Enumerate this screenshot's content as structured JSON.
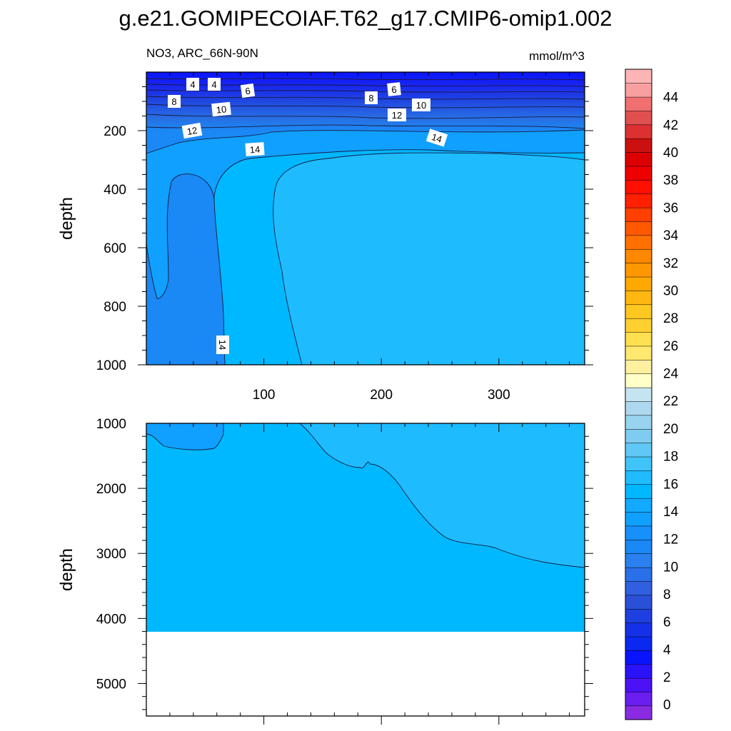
{
  "chart_data": {
    "type": "heatmap",
    "title": "g.e21.GOMIPECOIAF.T62_g17.CMIP6-omip1.002",
    "left_subtitle": "NO3, ARC_66N-90N",
    "right_subtitle": "mmol/m^3",
    "colorbar": {
      "levels": [
        0,
        2,
        4,
        6,
        8,
        10,
        12,
        14,
        16,
        18,
        20,
        22,
        24,
        26,
        28,
        30,
        32,
        34,
        36,
        38,
        40,
        42,
        44
      ],
      "tick_labels": [
        "0",
        "2",
        "4",
        "6",
        "8",
        "10",
        "12",
        "14",
        "16",
        "18",
        "20",
        "22",
        "24",
        "26",
        "28",
        "30",
        "32",
        "34",
        "36",
        "38",
        "40",
        "42",
        "44"
      ],
      "bin_colors": [
        "#8a2be2",
        "#6a1ef0",
        "#4b12f5",
        "#2a12fa",
        "#0a14fc",
        "#0a28f0",
        "#1530e6",
        "#1e40e0",
        "#2a50d8",
        "#3060e0",
        "#2a70e8",
        "#2a80ee",
        "#1a88f5",
        "#1890fc",
        "#10a0ff",
        "#12aaff",
        "#00b8ff",
        "#20bcff",
        "#40c4f8",
        "#60c8f4",
        "#80ccf0",
        "#98d4f0",
        "#aed8f0",
        "#c4e4f0",
        "#ffffc8",
        "#fff0a0",
        "#ffe870",
        "#ffe050",
        "#ffd030",
        "#ffc820",
        "#ffb810",
        "#ffa800",
        "#ff9800",
        "#ff8800",
        "#ff7000",
        "#ff5800",
        "#ff4000",
        "#ff2000",
        "#ff1000",
        "#ee0000",
        "#dd0000",
        "#cc1010",
        "#dd3030",
        "#e05050",
        "#f07070",
        "#f8a0a0",
        "#fcb4b4"
      ]
    },
    "top_panel": {
      "x_ticks": [
        100,
        200,
        300
      ],
      "xlim": [
        0,
        373
      ],
      "y_ticks": [
        200,
        400,
        600,
        800,
        1000
      ],
      "ylim": [
        0,
        1000
      ],
      "ylabel": "depth",
      "contour_labels": [
        "4",
        "4",
        "6",
        "8",
        "10",
        "8",
        "6",
        "10",
        "12",
        "12",
        "14",
        "14",
        "14"
      ]
    },
    "bottom_panel": {
      "xlim": [
        0,
        373
      ],
      "y_ticks": [
        1000,
        2000,
        3000,
        4000,
        5000
      ],
      "ylim": [
        1000,
        5500
      ],
      "ylabel": "depth",
      "data_bottom_depth": 4100
    }
  }
}
